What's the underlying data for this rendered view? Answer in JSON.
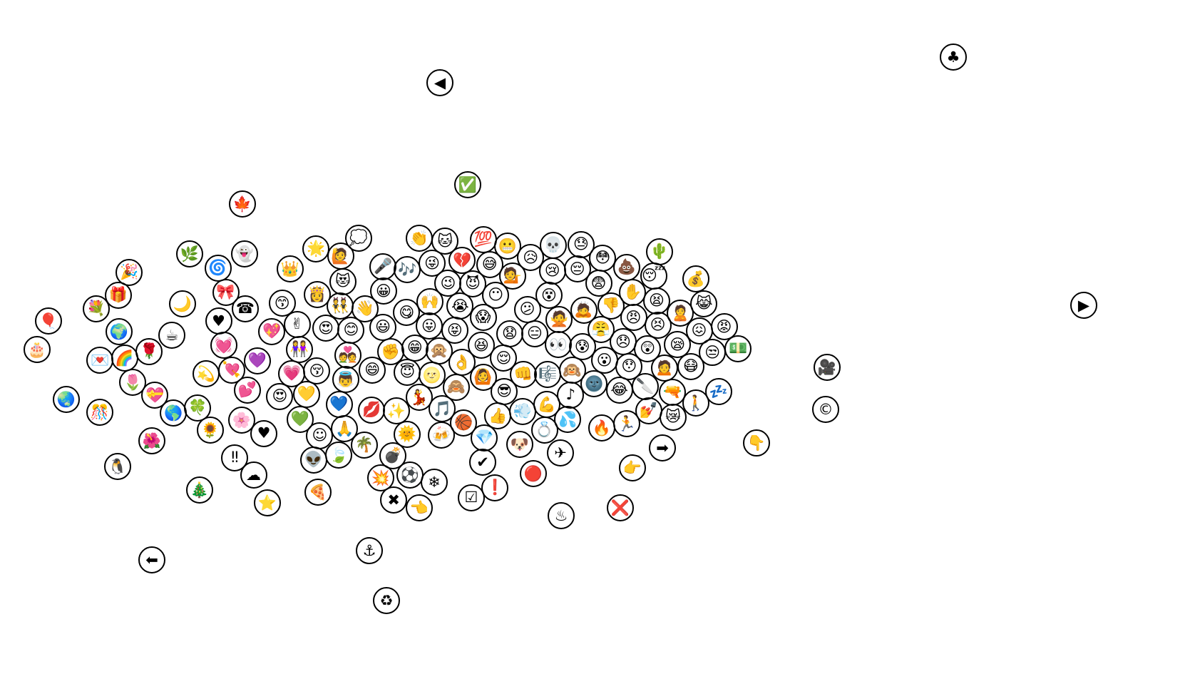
{
  "chart_data": {
    "type": "scatter",
    "marker": "circle-with-emoji",
    "marker_border_color": "#000000",
    "background": "#ffffff",
    "points": [
      "♣",
      "◀",
      "✅",
      "🍁",
      "▶",
      "🎥",
      "©",
      "👇",
      "⬅",
      "⚓",
      "♻",
      "🎈",
      "🎂",
      "🎉",
      "💐",
      "🎁",
      "🌿",
      "👻",
      "🌀",
      "🎀",
      "🌙",
      "☎",
      "🌍",
      "☕",
      "🌹",
      "♥",
      "💌",
      "🌈",
      "💓",
      "💘",
      "💜",
      "💖",
      "💫",
      "💕",
      "🌷",
      "💝",
      "🌏",
      "🎊",
      "🌎",
      "🍀",
      "🌻",
      "🌸",
      "♥",
      "🌺",
      "🐧",
      "‼",
      "☁",
      "🎄",
      "⭐",
      "👑",
      "🌟",
      "🙋",
      "💭",
      "😙",
      "👸",
      "😻",
      "👯",
      "👋",
      "😍",
      "😊",
      "💑",
      "😃",
      "😀",
      "🎤",
      "🎶",
      "👏",
      "🐱",
      "✌",
      "👭",
      "😚",
      "💗",
      "😍",
      "💛",
      "💚",
      "👼",
      "💙",
      "🙏",
      "☺",
      "👽",
      "🍃",
      "🌴",
      "💋",
      "✨",
      "🍕",
      "😄",
      "✊",
      "😋",
      "😁",
      "😇",
      "🌝",
      "🙈",
      "👌",
      "💃",
      "🎵",
      "🏀",
      "🍻",
      "🌞",
      "💣",
      "⚽",
      "💥",
      "❄",
      "✖",
      "👈",
      "😜",
      "😉",
      "🙌",
      "😛",
      "🙊",
      "😝",
      "💔",
      "😈",
      "😶",
      "😱",
      "😭",
      "💯",
      "😬",
      "😅",
      "💁",
      "😥",
      "💀",
      "😢",
      "😓",
      "😔",
      "😳",
      "😨",
      "😵",
      "😕",
      "🙅",
      "🙇",
      "😧",
      "😑",
      "👀",
      "😰",
      "🙉",
      "😮",
      "🌚",
      "👎",
      "💩",
      "✋",
      "🌵",
      "😴",
      "😫",
      "🙎",
      "💰",
      "😹",
      "😡",
      "💵",
      "😠",
      "😣",
      "😤",
      "😞",
      "😲",
      "😯",
      "😪",
      "😖",
      "😒",
      "😷",
      "🔫",
      "😂",
      "🔪",
      "🙍",
      "🚶",
      "💤",
      "😿",
      "💅",
      "🏃",
      "🔥",
      "➡",
      "👉",
      "❌",
      "♨",
      "✈",
      "🔴",
      "🐶",
      "💎",
      "✔",
      "☑",
      "❗",
      "👍",
      "💨",
      "💍",
      "💦",
      "👊",
      "💪",
      "🎼",
      "♪",
      "😆",
      "😌",
      "🙆",
      "😎"
    ]
  }
}
